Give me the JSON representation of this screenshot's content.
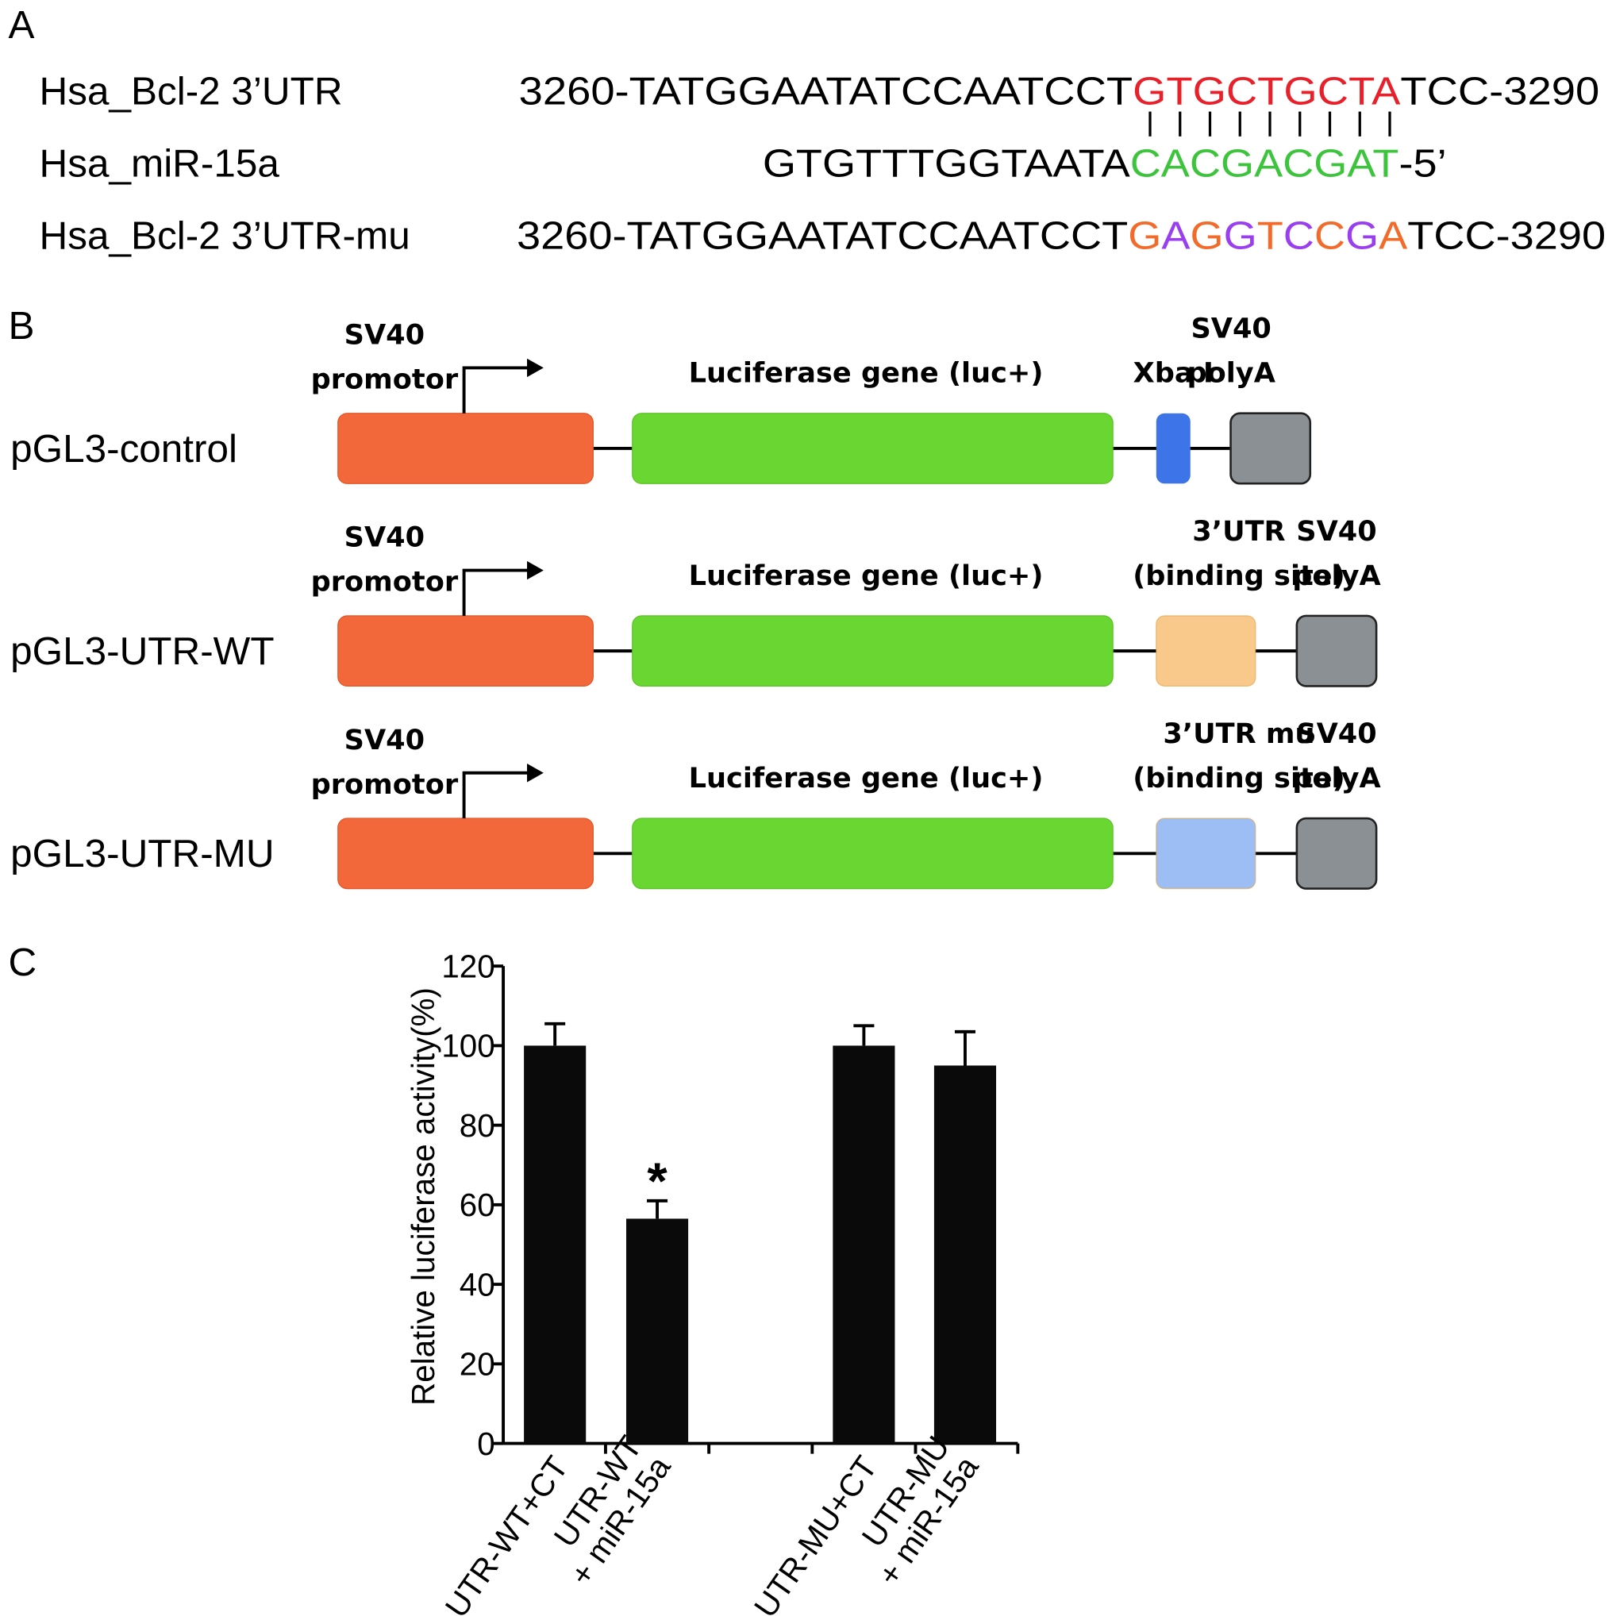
{
  "panel_a": {
    "label": "A",
    "rows": [
      {
        "name": "Hsa_Bcl-2 3’UTR",
        "segments": [
          {
            "text": "3260-TATGGAATATCCAATCCT",
            "color": "#000000"
          },
          {
            "text": "GTGCTGCTA",
            "color": "#e8202a"
          },
          {
            "text": "TCC-3290",
            "color": "#000000"
          }
        ]
      },
      {
        "name": "Hsa_miR-15a",
        "segments": [
          {
            "text": "GTGTTTGGTAATA",
            "color": "#000000"
          },
          {
            "text": "CACGACGAT",
            "color": "#3cc43c"
          },
          {
            "text": "-5’",
            "color": "#000000"
          }
        ]
      },
      {
        "name": "Hsa_Bcl-2 3’UTR-mu",
        "segments": [
          {
            "text": "3260-TATGGAATATCCAATCCT",
            "color": "#000000"
          },
          {
            "text": "G",
            "color": "#f26b2a"
          },
          {
            "text": "A",
            "color": "#9a3ff0"
          },
          {
            "text": "G",
            "color": "#f26b2a"
          },
          {
            "text": "G",
            "color": "#9a3ff0"
          },
          {
            "text": "T",
            "color": "#f26b2a"
          },
          {
            "text": "C",
            "color": "#9a3ff0"
          },
          {
            "text": "C",
            "color": "#f26b2a"
          },
          {
            "text": "G",
            "color": "#9a3ff0"
          },
          {
            "text": "A",
            "color": "#f26b2a"
          },
          {
            "text": "TCC-3290",
            "color": "#000000"
          }
        ]
      }
    ]
  },
  "panel_b": {
    "label": "B",
    "constructs": [
      {
        "name": "pGL3-control",
        "promoter": [
          "SV40",
          "promotor"
        ],
        "gene": "Luciferase gene (luc+)",
        "insert": [
          "Xba I"
        ],
        "insert_color": "#3d74e8",
        "polyA": [
          "SV40",
          "polyA"
        ]
      },
      {
        "name": "pGL3-UTR-WT",
        "promoter": [
          "SV40",
          "promotor"
        ],
        "gene": "Luciferase gene (luc+)",
        "insert": [
          "3’UTR",
          "(binding site)"
        ],
        "insert_color": "#f8c98a",
        "polyA": [
          "SV40",
          "polyA"
        ]
      },
      {
        "name": "pGL3-UTR-MU",
        "promoter": [
          "SV40",
          "promotor"
        ],
        "gene": "Luciferase gene (luc+)",
        "insert": [
          "3’UTR mu",
          "(binding site)"
        ],
        "insert_color": "#9dbdf5",
        "polyA": [
          "SV40",
          "polyA"
        ]
      }
    ]
  },
  "panel_c_label": "C",
  "chart_data": {
    "type": "bar",
    "y_label": "Relative luciferase activity(%)",
    "categories": [
      [
        "UTR-WT+CT"
      ],
      [
        "UTR-WT",
        "+ miR-15a"
      ],
      [
        "UTR-MU+CT"
      ],
      [
        "UTR-MU",
        "+ miR-15a"
      ]
    ],
    "values": [
      100,
      56.5,
      100,
      95
    ],
    "errors": [
      5.5,
      4.5,
      5,
      8.5
    ],
    "annotations": [
      {
        "index": 1,
        "text": "*"
      }
    ],
    "color": "#0a0a0a",
    "ylim": [
      0,
      120
    ],
    "yticks": [
      0,
      20,
      40,
      60,
      80,
      100,
      120
    ]
  }
}
